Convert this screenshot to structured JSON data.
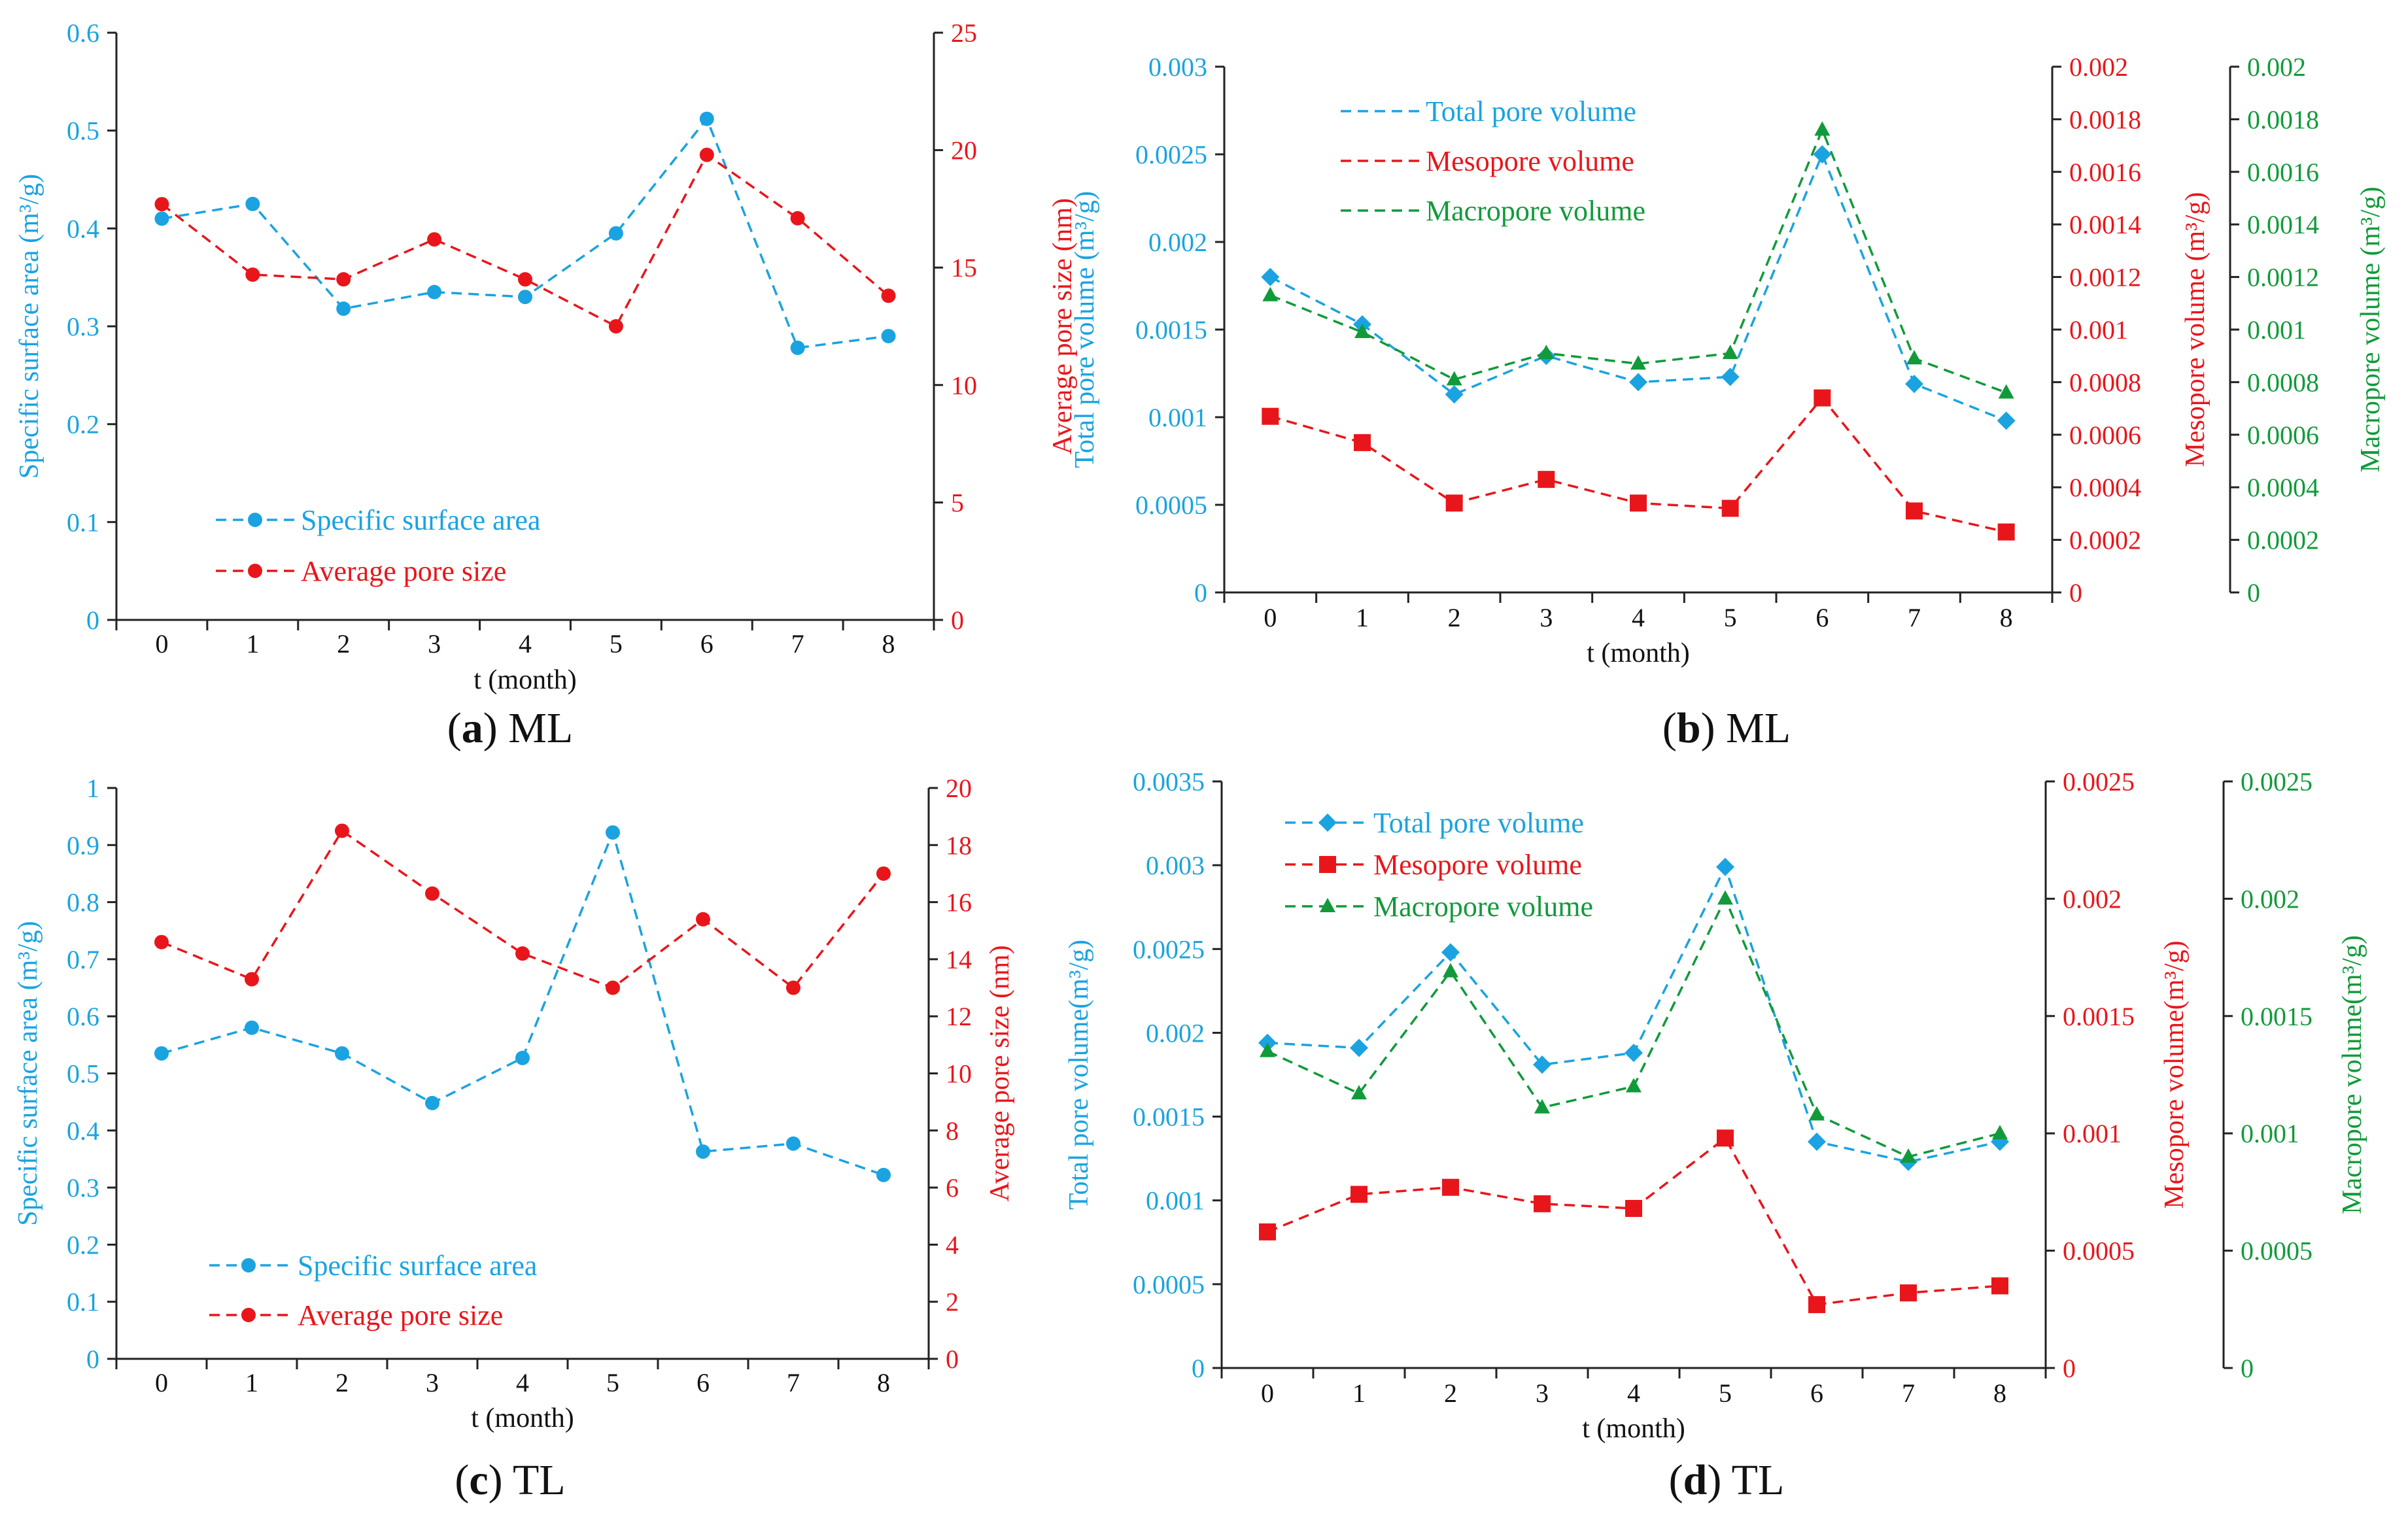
{
  "colors": {
    "blue": "#1aa3e0",
    "red": "#e8161b",
    "green": "#119a3a",
    "axis": "#222222"
  },
  "captions": [
    {
      "letter": "a",
      "label": " ML"
    },
    {
      "letter": "b",
      "label": " ML"
    },
    {
      "letter": "c",
      "label": " TL"
    },
    {
      "letter": "d",
      "label": " TL"
    }
  ],
  "chart_data": [
    {
      "id": "a",
      "type": "line",
      "x": [
        0,
        1,
        2,
        3,
        4,
        5,
        6,
        7,
        8
      ],
      "xlabel": "t (month)",
      "axes": [
        {
          "side": "left",
          "color": "blue",
          "label": "Specific surface area (m³/g)",
          "lim": [
            0,
            0.6
          ],
          "ticks": [
            "0",
            "0.1",
            "0.2",
            "0.3",
            "0.4",
            "0.5",
            "0.6"
          ]
        },
        {
          "side": "right",
          "color": "red",
          "label": "Average pore size  (nm)",
          "lim": [
            0,
            25
          ],
          "ticks": [
            "0",
            "5",
            "10",
            "15",
            "20",
            "25"
          ]
        }
      ],
      "series": [
        {
          "name": "Specific surface area",
          "axis": 0,
          "color": "blue",
          "marker": "circle",
          "values": [
            0.41,
            0.425,
            0.318,
            0.335,
            0.33,
            0.395,
            0.512,
            0.278,
            0.29
          ]
        },
        {
          "name": "Average pore size",
          "axis": 1,
          "color": "red",
          "marker": "circle",
          "values": [
            17.7,
            14.7,
            14.5,
            16.2,
            14.5,
            12.5,
            19.8,
            17.1,
            13.8
          ]
        }
      ]
    },
    {
      "id": "b",
      "type": "line",
      "x": [
        0,
        1,
        2,
        3,
        4,
        5,
        6,
        7,
        8
      ],
      "xlabel": "t (month)",
      "axes": [
        {
          "side": "left",
          "color": "blue",
          "label": "Total pore volume (m³/g)",
          "lim": [
            0,
            0.003
          ],
          "ticks": [
            "0",
            "0.0005",
            "0.001",
            "0.0015",
            "0.002",
            "0.0025",
            "0.003"
          ]
        },
        {
          "side": "right",
          "color": "red",
          "label": "Mesopore volume (m³/g)",
          "lim": [
            0,
            0.002
          ],
          "ticks": [
            "0",
            "0.0002",
            "0.0004",
            "0.0006",
            "0.0008",
            "0.001",
            "0.0012",
            "0.0014",
            "0.0016",
            "0.0018",
            "0.002"
          ]
        },
        {
          "side": "right2",
          "color": "green",
          "label": "Macropore volume (m³/g)",
          "lim": [
            0,
            0.002
          ],
          "ticks": [
            "0",
            "0.0002",
            "0.0004",
            "0.0006",
            "0.0008",
            "0.001",
            "0.0012",
            "0.0014",
            "0.0016",
            "0.0018",
            "0.002"
          ]
        }
      ],
      "series": [
        {
          "name": "Total pore volume",
          "axis": 0,
          "color": "blue",
          "marker": "diamond",
          "values": [
            0.0018,
            0.00153,
            0.00113,
            0.00135,
            0.0012,
            0.00123,
            0.0025,
            0.00119,
            0.00098
          ]
        },
        {
          "name": "Mesopore volume",
          "axis": 1,
          "color": "red",
          "marker": "square",
          "values": [
            0.00067,
            0.00057,
            0.00034,
            0.00043,
            0.00034,
            0.00032,
            0.00074,
            0.00031,
            0.00023
          ]
        },
        {
          "name": "Macropore volume",
          "axis": 2,
          "color": "green",
          "marker": "triangle",
          "values": [
            0.00113,
            0.00099,
            0.00081,
            0.00091,
            0.00087,
            0.00091,
            0.00176,
            0.00089,
            0.00076
          ]
        }
      ]
    },
    {
      "id": "c",
      "type": "line",
      "x": [
        0,
        1,
        2,
        3,
        4,
        5,
        6,
        7,
        8
      ],
      "xlabel": "t (month)",
      "axes": [
        {
          "side": "left",
          "color": "blue",
          "label": "Specific surface area (m³/g)",
          "lim": [
            0,
            1
          ],
          "ticks": [
            "0",
            "0.1",
            "0.2",
            "0.3",
            "0.4",
            "0.5",
            "0.6",
            "0.7",
            "0.8",
            "0.9",
            "1"
          ]
        },
        {
          "side": "right",
          "color": "red",
          "label": "Average pore size  (nm)",
          "lim": [
            0,
            20
          ],
          "ticks": [
            "0",
            "2",
            "4",
            "6",
            "8",
            "10",
            "12",
            "14",
            "16",
            "18",
            "20"
          ]
        }
      ],
      "series": [
        {
          "name": "Specific surface area",
          "axis": 0,
          "color": "blue",
          "marker": "circle",
          "values": [
            0.535,
            0.58,
            0.535,
            0.448,
            0.527,
            0.922,
            0.363,
            0.377,
            0.322
          ]
        },
        {
          "name": "Average pore size",
          "axis": 1,
          "color": "red",
          "marker": "circle",
          "values": [
            14.6,
            13.3,
            18.5,
            16.3,
            14.2,
            13.0,
            15.4,
            13.0,
            17.0
          ]
        }
      ]
    },
    {
      "id": "d",
      "type": "line",
      "x": [
        0,
        1,
        2,
        3,
        4,
        5,
        6,
        7,
        8
      ],
      "xlabel": "t (month)",
      "axes": [
        {
          "side": "left",
          "color": "blue",
          "label": "Total pore volume(m³/g)",
          "lim": [
            0,
            0.0035
          ],
          "ticks": [
            "0",
            "0.0005",
            "0.001",
            "0.0015",
            "0.002",
            "0.0025",
            "0.003",
            "0.0035"
          ]
        },
        {
          "side": "right",
          "color": "red",
          "label": "Mesopore volume(m³/g)",
          "lim": [
            0,
            0.0025
          ],
          "ticks": [
            "0",
            "0.0005",
            "0.001",
            "0.0015",
            "0.002",
            "0.0025"
          ]
        },
        {
          "side": "right2",
          "color": "green",
          "label": "Macropore volume(m³/g)",
          "lim": [
            0,
            0.0025
          ],
          "ticks": [
            "0",
            "0.0005",
            "0.001",
            "0.0015",
            "0.002",
            "0.0025"
          ]
        }
      ],
      "series": [
        {
          "name": "Total pore volume",
          "axis": 0,
          "color": "blue",
          "marker": "diamond",
          "values": [
            0.00194,
            0.00191,
            0.00248,
            0.00181,
            0.00188,
            0.00299,
            0.00135,
            0.00123,
            0.00135
          ]
        },
        {
          "name": "Mesopore volume",
          "axis": 1,
          "color": "red",
          "marker": "square",
          "values": [
            0.00058,
            0.00074,
            0.00077,
            0.0007,
            0.00068,
            0.00098,
            0.00027,
            0.00032,
            0.00035
          ]
        },
        {
          "name": "Macropore volume",
          "axis": 2,
          "color": "green",
          "marker": "triangle",
          "values": [
            0.00135,
            0.00117,
            0.00169,
            0.00111,
            0.0012,
            0.002,
            0.00108,
            0.0009,
            0.001
          ]
        }
      ]
    }
  ]
}
